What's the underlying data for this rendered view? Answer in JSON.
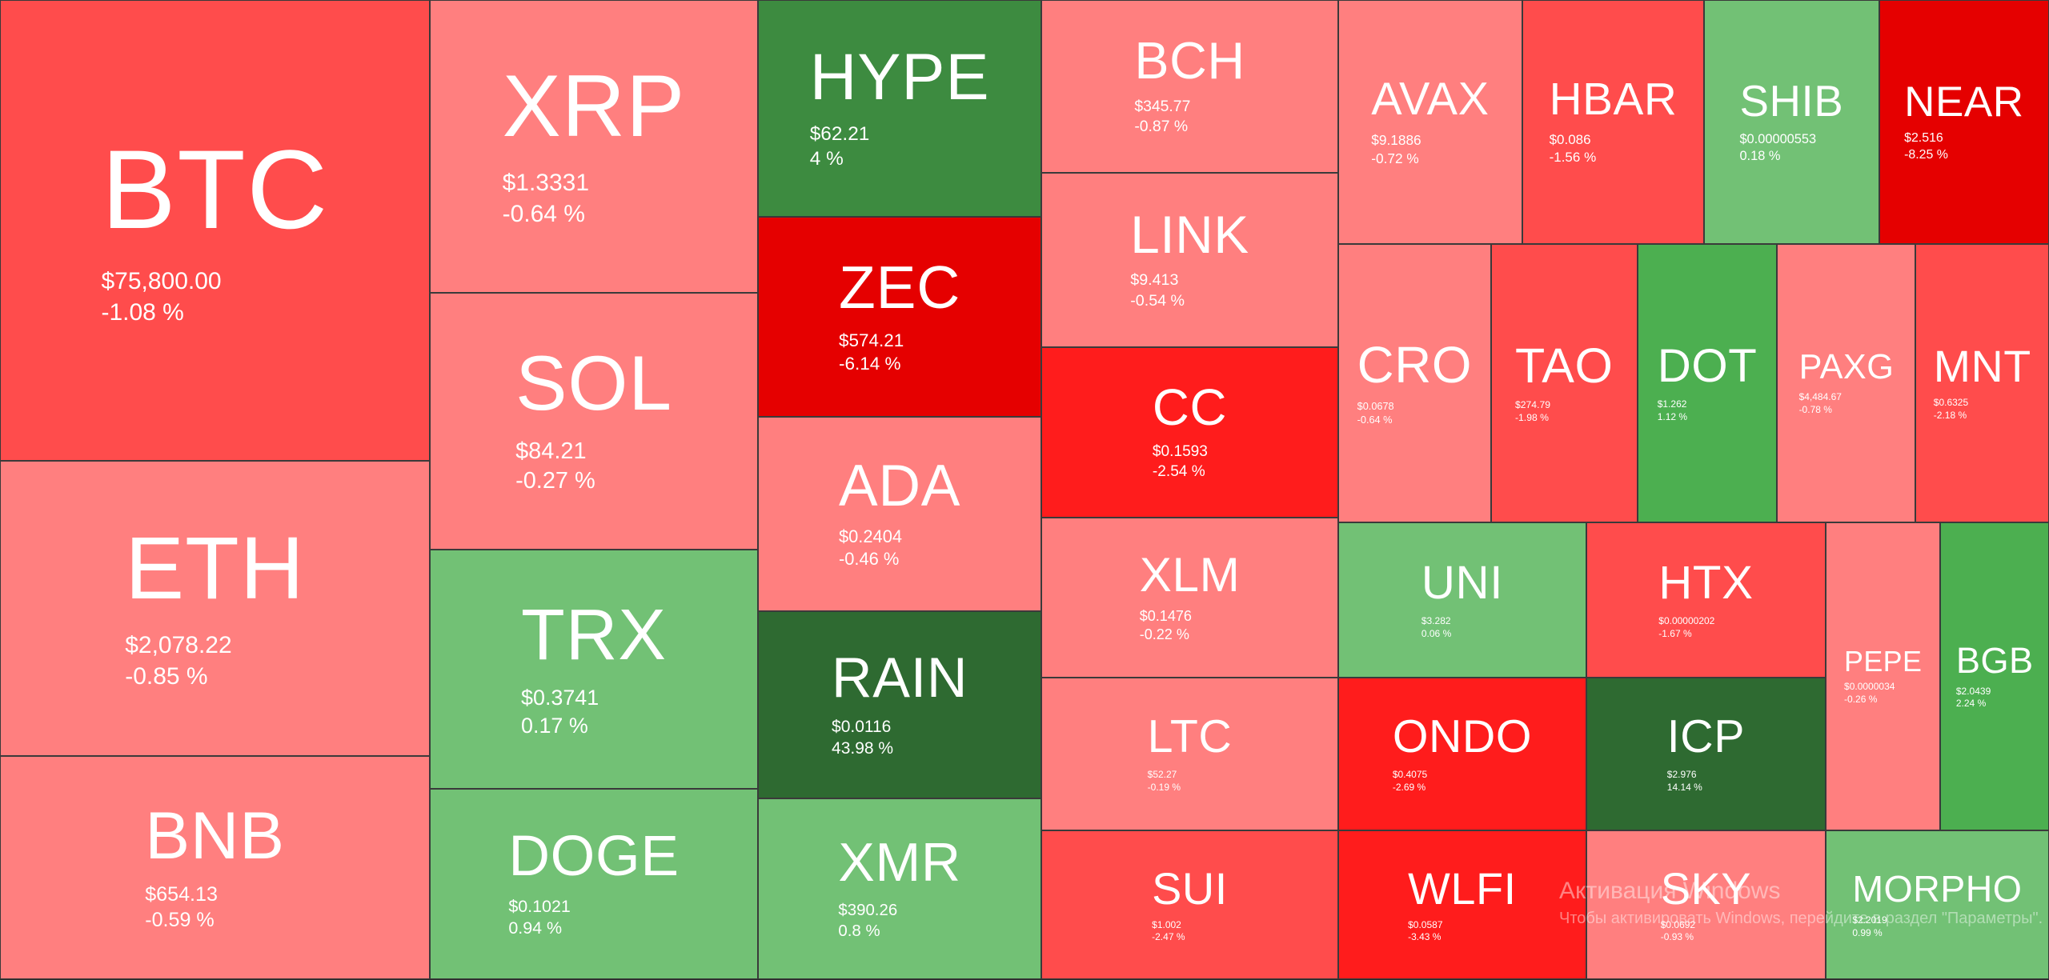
{
  "tiles": [
    {
      "symbol": "BTC",
      "price": "$75,800.00",
      "change": "-1.08 %",
      "color": "#ff4c4c"
    },
    {
      "symbol": "ETH",
      "price": "$2,078.22",
      "change": "-0.85 %",
      "color": "#ff7f7f"
    },
    {
      "symbol": "BNB",
      "price": "$654.13",
      "change": "-0.59 %",
      "color": "#ff7f7f"
    },
    {
      "symbol": "XRP",
      "price": "$1.3331",
      "change": "-0.64 %",
      "color": "#ff7f7f"
    },
    {
      "symbol": "SOL",
      "price": "$84.21",
      "change": "-0.27 %",
      "color": "#ff7f7f"
    },
    {
      "symbol": "TRX",
      "price": "$0.3741",
      "change": "0.17 %",
      "color": "#72c175"
    },
    {
      "symbol": "DOGE",
      "price": "$0.1021",
      "change": "0.94 %",
      "color": "#72c175"
    },
    {
      "symbol": "HYPE",
      "price": "$62.21",
      "change": "4 %",
      "color": "#3d8b40"
    },
    {
      "symbol": "ZEC",
      "price": "$574.21",
      "change": "-6.14 %",
      "color": "#e50000"
    },
    {
      "symbol": "ADA",
      "price": "$0.2404",
      "change": "-0.46 %",
      "color": "#ff7f7f"
    },
    {
      "symbol": "RAIN",
      "price": "$0.0116",
      "change": "43.98 %",
      "color": "#2e6a31"
    },
    {
      "symbol": "XMR",
      "price": "$390.26",
      "change": "0.8 %",
      "color": "#72c175"
    },
    {
      "symbol": "BCH",
      "price": "$345.77",
      "change": "-0.87 %",
      "color": "#ff7f7f"
    },
    {
      "symbol": "LINK",
      "price": "$9.413",
      "change": "-0.54 %",
      "color": "#ff7f7f"
    },
    {
      "symbol": "CC",
      "price": "$0.1593",
      "change": "-2.54 %",
      "color": "#ff1c1c"
    },
    {
      "symbol": "XLM",
      "price": "$0.1476",
      "change": "-0.22 %",
      "color": "#ff7f7f"
    },
    {
      "symbol": "LTC",
      "price": "$52.27",
      "change": "-0.19 %",
      "color": "#ff7f7f"
    },
    {
      "symbol": "SUI",
      "price": "$1.002",
      "change": "-2.47 %",
      "color": "#ff4c4c"
    },
    {
      "symbol": "AVAX",
      "price": "$9.1886",
      "change": "-0.72 %",
      "color": "#ff7f7f"
    },
    {
      "symbol": "HBAR",
      "price": "$0.086",
      "change": "-1.56 %",
      "color": "#ff4c4c"
    },
    {
      "symbol": "SHIB",
      "price": "$0.00000553",
      "change": "0.18 %",
      "color": "#72c175"
    },
    {
      "symbol": "NEAR",
      "price": "$2.516",
      "change": "-8.25 %",
      "color": "#e50000"
    },
    {
      "symbol": "CRO",
      "price": "$0.0678",
      "change": "-0.64 %",
      "color": "#ff7f7f"
    },
    {
      "symbol": "TAO",
      "price": "$274.79",
      "change": "-1.98 %",
      "color": "#ff4c4c"
    },
    {
      "symbol": "DOT",
      "price": "$1.262",
      "change": "1.12 %",
      "color": "#4caf50"
    },
    {
      "symbol": "PAXG",
      "price": "$4,484.67",
      "change": "-0.78 %",
      "color": "#ff7f7f"
    },
    {
      "symbol": "MNT",
      "price": "$0.6325",
      "change": "-2.18 %",
      "color": "#ff4c4c"
    },
    {
      "symbol": "UNI",
      "price": "$3.282",
      "change": "0.06 %",
      "color": "#72c175"
    },
    {
      "symbol": "HTX",
      "price": "$0.00000202",
      "change": "-1.67 %",
      "color": "#ff4c4c"
    },
    {
      "symbol": "ONDO",
      "price": "$0.4075",
      "change": "-2.69 %",
      "color": "#ff1c1c"
    },
    {
      "symbol": "ICP",
      "price": "$2.976",
      "change": "14.14 %",
      "color": "#2e6a31"
    },
    {
      "symbol": "WLFI",
      "price": "$0.0587",
      "change": "-3.43 %",
      "color": "#ff1c1c"
    },
    {
      "symbol": "SKY",
      "price": "$0.0692",
      "change": "-0.93 %",
      "color": "#ff7f7f"
    },
    {
      "symbol": "PEPE",
      "price": "$0.0000034",
      "change": "-0.26 %",
      "color": "#ff7f7f"
    },
    {
      "symbol": "BGB",
      "price": "$2.0439",
      "change": "2.24 %",
      "color": "#4caf50"
    },
    {
      "symbol": "MORPHO",
      "price": "$2.2019",
      "change": "0.99 %",
      "color": "#72c175"
    }
  ],
  "watermark": {
    "title": "Активация Windows",
    "text": "Чтобы активировать Windows, перейдите в раздел \"Параметры\"."
  }
}
